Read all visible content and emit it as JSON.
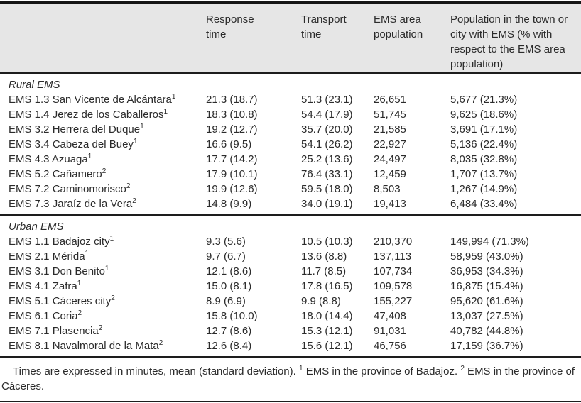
{
  "table": {
    "header": {
      "col1": "",
      "col2": "Response time",
      "col3": "Transport time",
      "col4": "EMS area population",
      "col5": "Population in the town or city with EMS (% with respect to the EMS area population)"
    },
    "sections": [
      {
        "label": "Rural EMS",
        "rows": [
          {
            "name": "EMS 1.3 San Vicente de Alcántara",
            "sup": "1",
            "response": "21.3 (18.7)",
            "transport": "51.3 (23.1)",
            "area_pop": "26,651",
            "town_pop": "5,677 (21.3%)"
          },
          {
            "name": "EMS 1.4 Jerez de los Caballeros",
            "sup": "1",
            "response": "18.3 (10.8)",
            "transport": "54.4 (17.9)",
            "area_pop": "51,745",
            "town_pop": "9,625 (18.6%)"
          },
          {
            "name": "EMS 3.2 Herrera del Duque",
            "sup": "1",
            "response": "19.2 (12.7)",
            "transport": "35.7 (20.0)",
            "area_pop": "21,585",
            "town_pop": "3,691 (17.1%)"
          },
          {
            "name": "EMS 3.4 Cabeza del Buey",
            "sup": "1",
            "response": "16.6 (9.5)",
            "transport": "54.1 (26.2)",
            "area_pop": "22,927",
            "town_pop": "5,136 (22.4%)"
          },
          {
            "name": "EMS 4.3 Azuaga",
            "sup": "1",
            "response": "17.7 (14.2)",
            "transport": "25.2 (13.6)",
            "area_pop": "24,497",
            "town_pop": "8,035 (32.8%)"
          },
          {
            "name": "EMS 5.2 Cañamero",
            "sup": "2",
            "response": "17.9 (10.1)",
            "transport": "76.4 (33.1)",
            "area_pop": "12,459",
            "town_pop": "1,707 (13.7%)"
          },
          {
            "name": "EMS 7.2 Caminomorisco",
            "sup": "2",
            "response": "19.9 (12.6)",
            "transport": "59.5 (18.0)",
            "area_pop": "8,503",
            "town_pop": "1,267 (14.9%)"
          },
          {
            "name": "EMS 7.3 Jaraíz de la Vera",
            "sup": "2",
            "response": "14.8 (9.9)",
            "transport": "34.0 (19.1)",
            "area_pop": "19,413",
            "town_pop": "6,484 (33.4%)"
          }
        ]
      },
      {
        "label": "Urban EMS",
        "rows": [
          {
            "name": "EMS 1.1 Badajoz city",
            "sup": "1",
            "response": "9.3 (5.6)",
            "transport": "10.5 (10.3)",
            "area_pop": "210,370",
            "town_pop": "149,994 (71.3%)"
          },
          {
            "name": "EMS 2.1 Mérida",
            "sup": "1",
            "response": "9.7 (6.7)",
            "transport": "13.6 (8.8)",
            "area_pop": "137,113",
            "town_pop": "58,959 (43.0%)"
          },
          {
            "name": "EMS 3.1 Don Benito",
            "sup": "1",
            "response": "12.1 (8.6)",
            "transport": "11.7 (8.5)",
            "area_pop": "107,734",
            "town_pop": "36,953 (34.3%)"
          },
          {
            "name": "EMS 4.1 Zafra",
            "sup": "1",
            "response": "15.0 (8.1)",
            "transport": "17.8 (16.5)",
            "area_pop": "109,578",
            "town_pop": "16,875 (15.4%)"
          },
          {
            "name": "EMS 5.1 Cáceres city",
            "sup": "2",
            "response": "8.9 (6.9)",
            "transport": "9.9 (8.8)",
            "area_pop": "155,227",
            "town_pop": "95,620 (61.6%)"
          },
          {
            "name": "EMS 6.1 Coria",
            "sup": "2",
            "response": "15.8 (10.0)",
            "transport": "18.0 (14.4)",
            "area_pop": "47,408",
            "town_pop": "13,037 (27.5%)"
          },
          {
            "name": "EMS 7.1 Plasencia",
            "sup": "2",
            "response": "12.7 (8.6)",
            "transport": "15.3 (12.1)",
            "area_pop": "91,031",
            "town_pop": "40,782 (44.8%)"
          },
          {
            "name": "EMS 8.1 Navalmoral de la Mata",
            "sup": "2",
            "response": "12.6 (8.4)",
            "transport": "15.6 (12.1)",
            "area_pop": "46,756",
            "town_pop": "17,159 (36.7%)"
          }
        ]
      }
    ],
    "footnote": {
      "main": "Times are expressed in minutes, mean (standard deviation).",
      "fn1_sup": "1",
      "fn1": " EMS in the province of Badajoz.",
      "fn2_sup": "2",
      "fn2": " EMS in the province of Cáceres."
    }
  },
  "colors": {
    "header_bg": "#e6e6e6",
    "text": "#2b2b2b",
    "rule": "#1d1d1d"
  }
}
